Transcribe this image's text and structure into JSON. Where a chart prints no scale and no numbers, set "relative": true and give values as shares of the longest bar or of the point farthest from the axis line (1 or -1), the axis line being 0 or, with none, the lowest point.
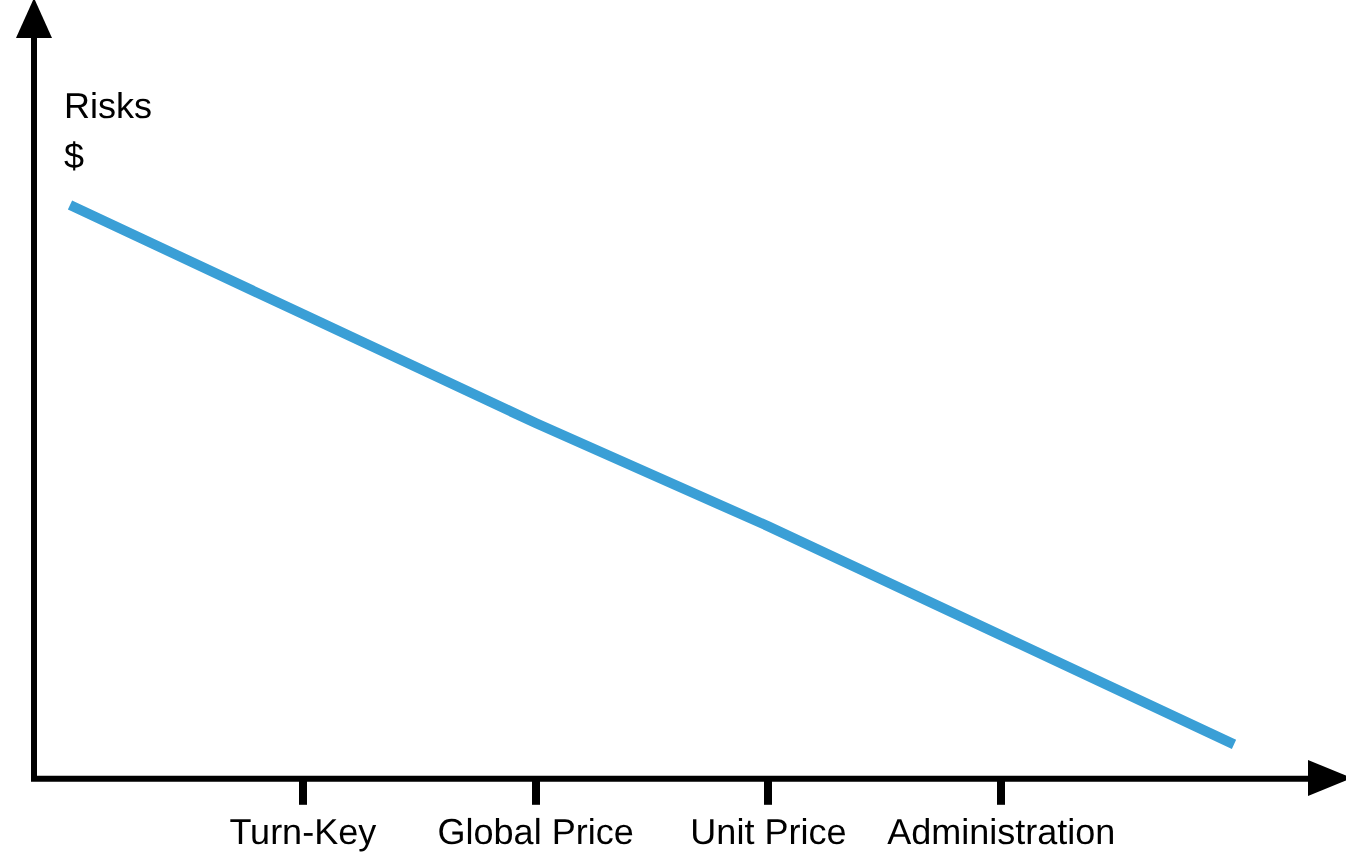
{
  "chart_data": {
    "type": "line",
    "relative": true,
    "ylabel": "Risks\n$",
    "categories": [
      null,
      "Turn-Key",
      "Global Price",
      "Unit Price",
      "Administration",
      null
    ],
    "series": [
      {
        "color": "#3a9fd6",
        "values": [
          1,
          0.81,
          0.62,
          0.44,
          0.25,
          0.06
        ]
      }
    ],
    "marker": "none",
    "line_style": "solid",
    "grid": false,
    "legend": false
  }
}
